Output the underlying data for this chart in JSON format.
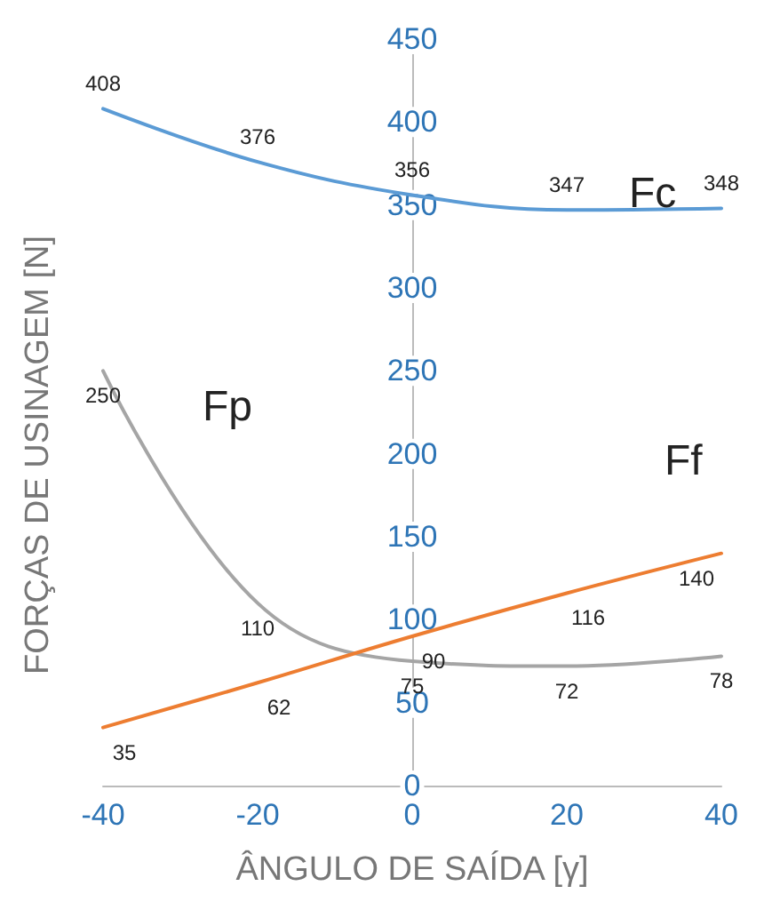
{
  "chart_data": {
    "type": "line",
    "xlabel": "ÂNGULO DE SAÍDA [γ]",
    "ylabel": "FORÇAS DE USINAGEM [N]",
    "x": [
      -40,
      -20,
      0,
      20,
      40
    ],
    "series": [
      {
        "name": "Fc",
        "color": "#5b9bd5",
        "values": [
          408,
          376,
          356,
          347,
          348
        ]
      },
      {
        "name": "Fp",
        "color": "#a5a5a5",
        "values": [
          250,
          110,
          75,
          72,
          78
        ]
      },
      {
        "name": "Ff",
        "color": "#ed7d31",
        "values": [
          35,
          62,
          90,
          116,
          140
        ]
      }
    ],
    "xlim": [
      -40,
      40
    ],
    "xticks": [
      -40,
      -20,
      0,
      20,
      40
    ],
    "ylim": [
      0,
      450
    ],
    "yticks": [
      0,
      50,
      100,
      150,
      200,
      250,
      300,
      350,
      400,
      450
    ],
    "data_labels": true,
    "grid": false,
    "marker": "none",
    "legend": false
  }
}
